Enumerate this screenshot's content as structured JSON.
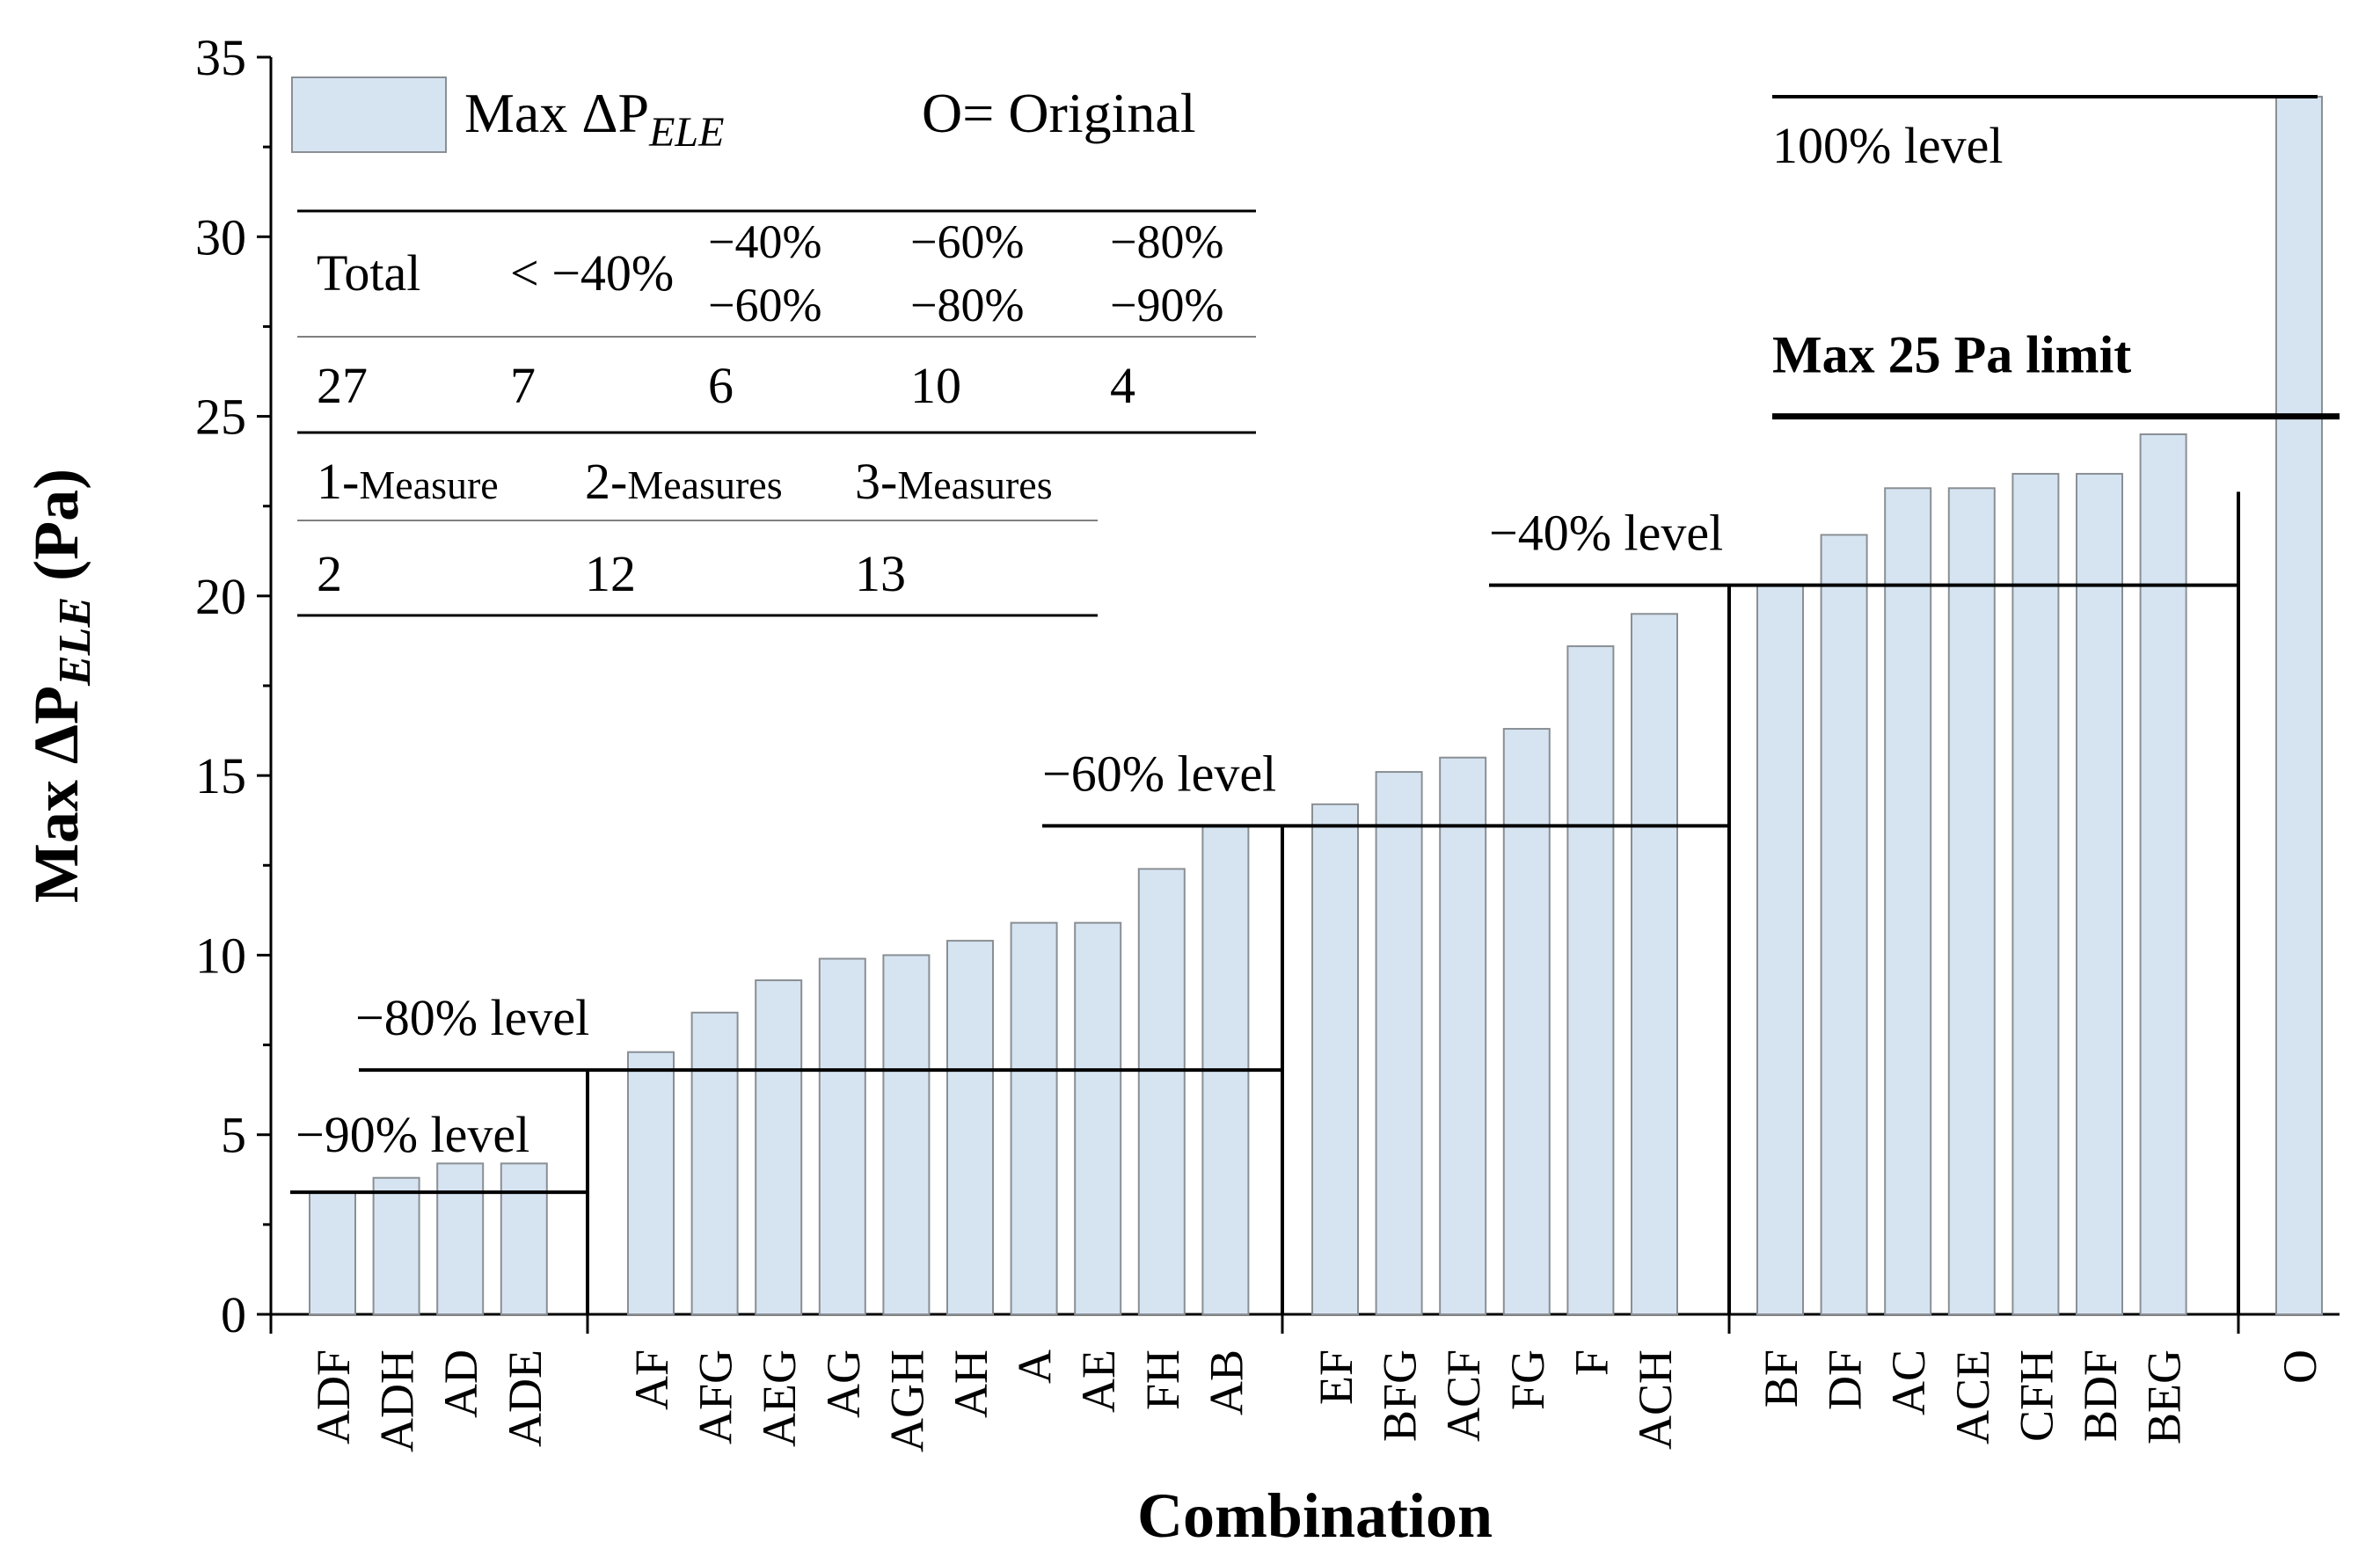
{
  "chart_data": {
    "type": "bar",
    "title": "",
    "xlabel": "Combination",
    "ylabel_prefix": "Max  ΔP",
    "ylabel_sub": "ELE",
    "ylabel_suffix": " (Pa)",
    "ylim": [
      0,
      35
    ],
    "yticks": [
      0,
      5,
      10,
      15,
      20,
      25,
      30,
      35
    ],
    "categories": [
      "ADF",
      "ADH",
      "AD",
      "ADE",
      "AF",
      "AFG",
      "AEG",
      "AG",
      "AGH",
      "AH",
      "A",
      "AE",
      "FH",
      "AB",
      "EF",
      "BFG",
      "ACF",
      "FG",
      "F",
      "ACH",
      "BF",
      "DF",
      "AC",
      "ACE",
      "CFH",
      "BDF",
      "BEG",
      "O"
    ],
    "groups": [
      {
        "start": 0,
        "count": 4
      },
      {
        "start": 4,
        "count": 10
      },
      {
        "start": 14,
        "count": 6
      },
      {
        "start": 20,
        "count": 7
      },
      {
        "start": 27,
        "count": 1
      }
    ],
    "series": [
      {
        "name": "Max ΔPELE",
        "values": [
          3.4,
          3.8,
          4.2,
          4.2,
          7.3,
          8.4,
          9.3,
          9.9,
          10.0,
          10.4,
          10.9,
          10.9,
          12.4,
          13.6,
          14.2,
          15.1,
          15.5,
          16.3,
          18.6,
          19.5,
          20.3,
          21.7,
          23.0,
          23.0,
          23.4,
          23.4,
          24.5,
          33.9
        ]
      }
    ],
    "legend": {
      "label_prefix": "Max ΔP",
      "label_sub": "ELE",
      "note": "O= Original",
      "position": "top-left"
    },
    "levels": [
      {
        "label": "−90% level",
        "value": 3.4
      },
      {
        "label": "−80% level",
        "value": 6.8
      },
      {
        "label": "−60% level",
        "value": 13.6
      },
      {
        "label": "−40% level",
        "value": 20.3
      },
      {
        "label": "Max 25 Pa limit",
        "value": 25.0
      },
      {
        "label": "100% level",
        "value": 33.9
      }
    ],
    "summary_table": {
      "headers": [
        {
          "line1": "Total",
          "line2": ""
        },
        {
          "line1": "< −40%",
          "line2": ""
        },
        {
          "line1": "−40%",
          "line2": "−60%"
        },
        {
          "line1": "−60%",
          "line2": "−80%"
        },
        {
          "line1": "−80%",
          "line2": "−90%"
        }
      ],
      "values": [
        "27",
        "7",
        "6",
        "10",
        "4"
      ],
      "measure_headers": [
        {
          "num": "1-",
          "word": "Measure"
        },
        {
          "num": "2-",
          "word": "Measures"
        },
        {
          "num": "3-",
          "word": "Measures"
        }
      ],
      "measure_values": [
        "2",
        "12",
        "13"
      ]
    }
  }
}
